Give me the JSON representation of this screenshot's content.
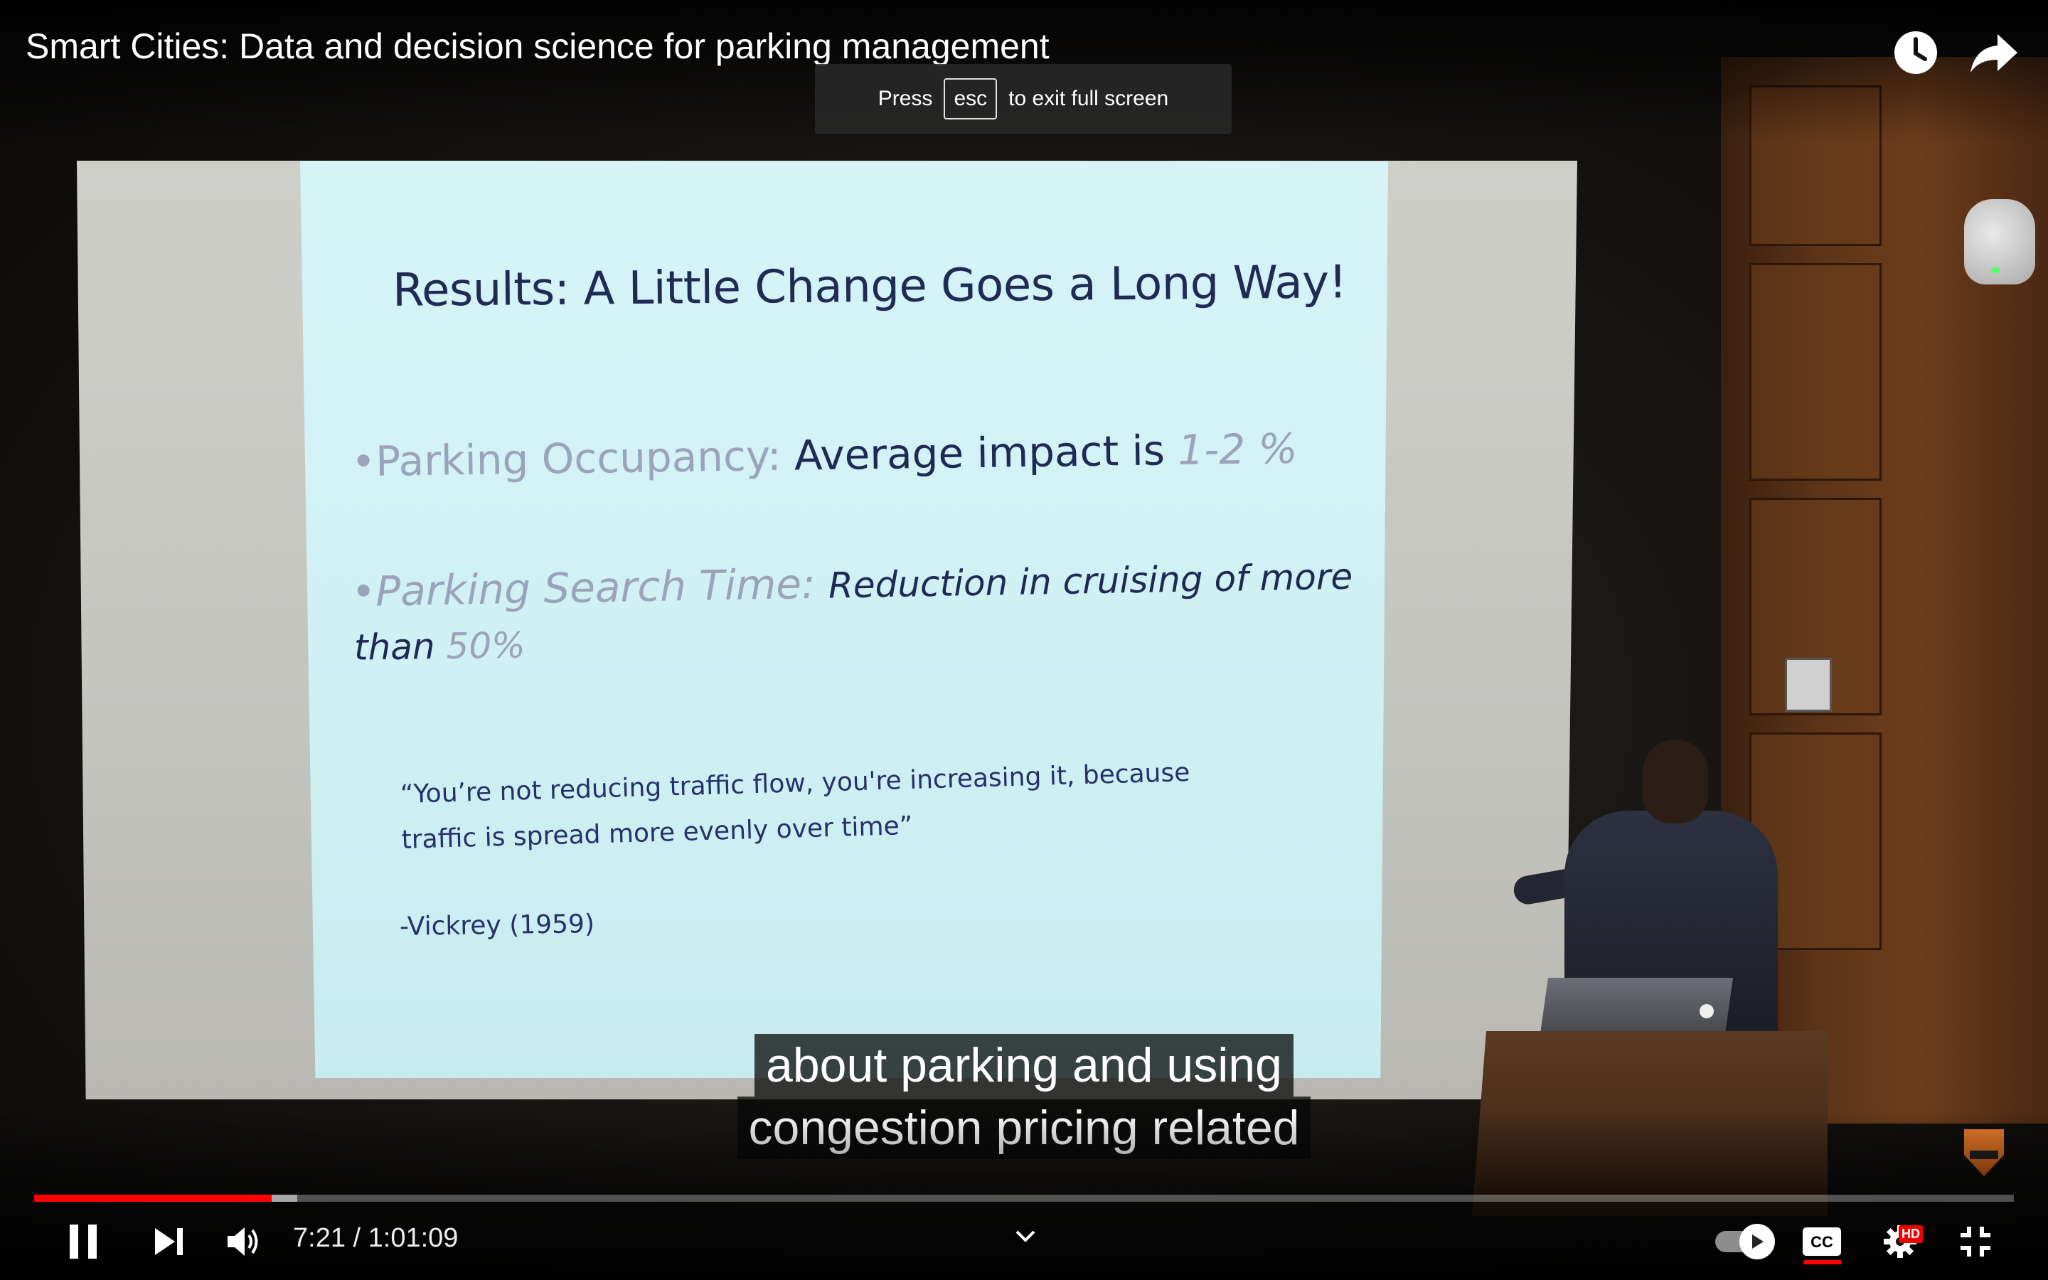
{
  "player": {
    "title": "Smart Cities: Data and decision science for parking management",
    "fullscreen_toast": {
      "before": "Press",
      "key": "esc",
      "after": "to exit full screen"
    },
    "time": {
      "current": "7:21",
      "separator": "/",
      "duration": "1:01:09"
    },
    "progress": {
      "played_fraction": 0.12,
      "buffered_fraction": 0.133
    },
    "hd_badge": "HD",
    "accent_color": "#ff0000"
  },
  "slide": {
    "title": "Results: A Little Change Goes a Long Way!",
    "bullet1": {
      "marker": "•",
      "label": "Parking Occupancy:",
      "text": "Average impact is",
      "value": "1-2 %"
    },
    "bullet2": {
      "marker": "•",
      "label": "Parking Search Time:",
      "text": "Reduction in cruising of more",
      "text2": "than",
      "value": "50%"
    },
    "quote_line1": "“You’re not reducing traffic flow, you're increasing it, because",
    "quote_line2": "traffic is spread more evenly over time”",
    "quote_attribution": "-Vickrey (1959)"
  },
  "captions": {
    "line1": "about parking and using",
    "line2": "congestion pricing related"
  },
  "icons": {
    "watch_later": "clock-icon",
    "share": "share-icon",
    "play_pause": "pause-icon",
    "next": "next-icon",
    "volume": "volume-icon",
    "chapter": "chevron-down-icon",
    "autoplay": "autoplay-toggle",
    "captions": "cc-icon",
    "settings": "gear-icon",
    "exit_fullscreen": "exit-fullscreen-icon"
  }
}
